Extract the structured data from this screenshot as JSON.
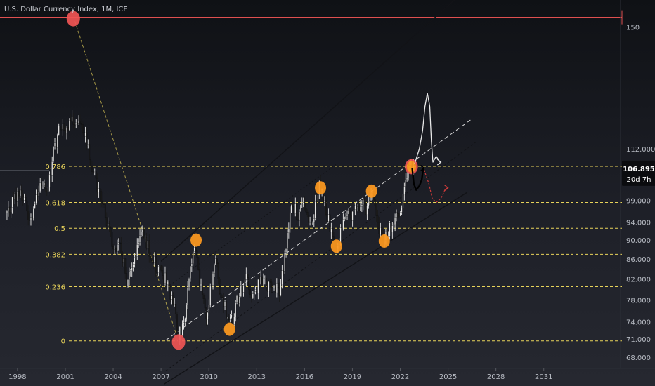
{
  "chart_data": {
    "type": "candlestick",
    "title": "U.S. Dollar Currency Index, 1M, ICE",
    "x_axis": {
      "ticks": [
        "1998",
        "2001",
        "2004",
        "2007",
        "2010",
        "2013",
        "2016",
        "2019",
        "2022",
        "2025",
        "2028",
        "2031"
      ],
      "range": [
        1997.3,
        2033.7
      ]
    },
    "y_axis": {
      "scale": "log",
      "range": [
        67.3,
        160
      ],
      "ticks": [
        "68.000",
        "71.000",
        "74.000",
        "78.000",
        "82.000",
        "86.000",
        "90.000",
        "94.000",
        "99.000",
        "112.000",
        "150"
      ]
    },
    "price_tag": {
      "value": "106.895",
      "countdown": "20d 7h"
    },
    "fib_levels": [
      {
        "label": "0.786",
        "value": 107.4
      },
      {
        "label": "0.618",
        "value": 98.5
      },
      {
        "label": "0.5",
        "value": 92.6
      },
      {
        "label": "0.382",
        "value": 87.0
      },
      {
        "label": "0.236",
        "value": 80.5
      },
      {
        "label": "0",
        "value": 70.7
      }
    ],
    "resistance_line": {
      "value": 153.5,
      "color": "#e05050"
    },
    "markers": [
      {
        "x": 2001.5,
        "y": 153,
        "color": "#f05555"
      },
      {
        "x": 2008.1,
        "y": 70.5,
        "color": "#f05555"
      },
      {
        "x": 2009.2,
        "y": 90.0,
        "color": "#ff9a1f"
      },
      {
        "x": 2011.3,
        "y": 72.7,
        "color": "#ff9a1f"
      },
      {
        "x": 2017.0,
        "y": 102.0,
        "color": "#ff9a1f"
      },
      {
        "x": 2018.0,
        "y": 88.7,
        "color": "#ff9a1f"
      },
      {
        "x": 2020.2,
        "y": 101.2,
        "color": "#ff9a1f"
      },
      {
        "x": 2021.0,
        "y": 89.8,
        "color": "#ff9a1f"
      },
      {
        "x": 2022.7,
        "y": 107.3,
        "color": "#ff9a1f",
        "ring": "#f05555"
      }
    ],
    "colors": {
      "background": "#16181f",
      "bull": "#e6e6e6",
      "bear": "#1a1a1a",
      "fib": "#e8d35a",
      "channel": "#1a1a1a",
      "midline": "#c8c8c8"
    }
  }
}
